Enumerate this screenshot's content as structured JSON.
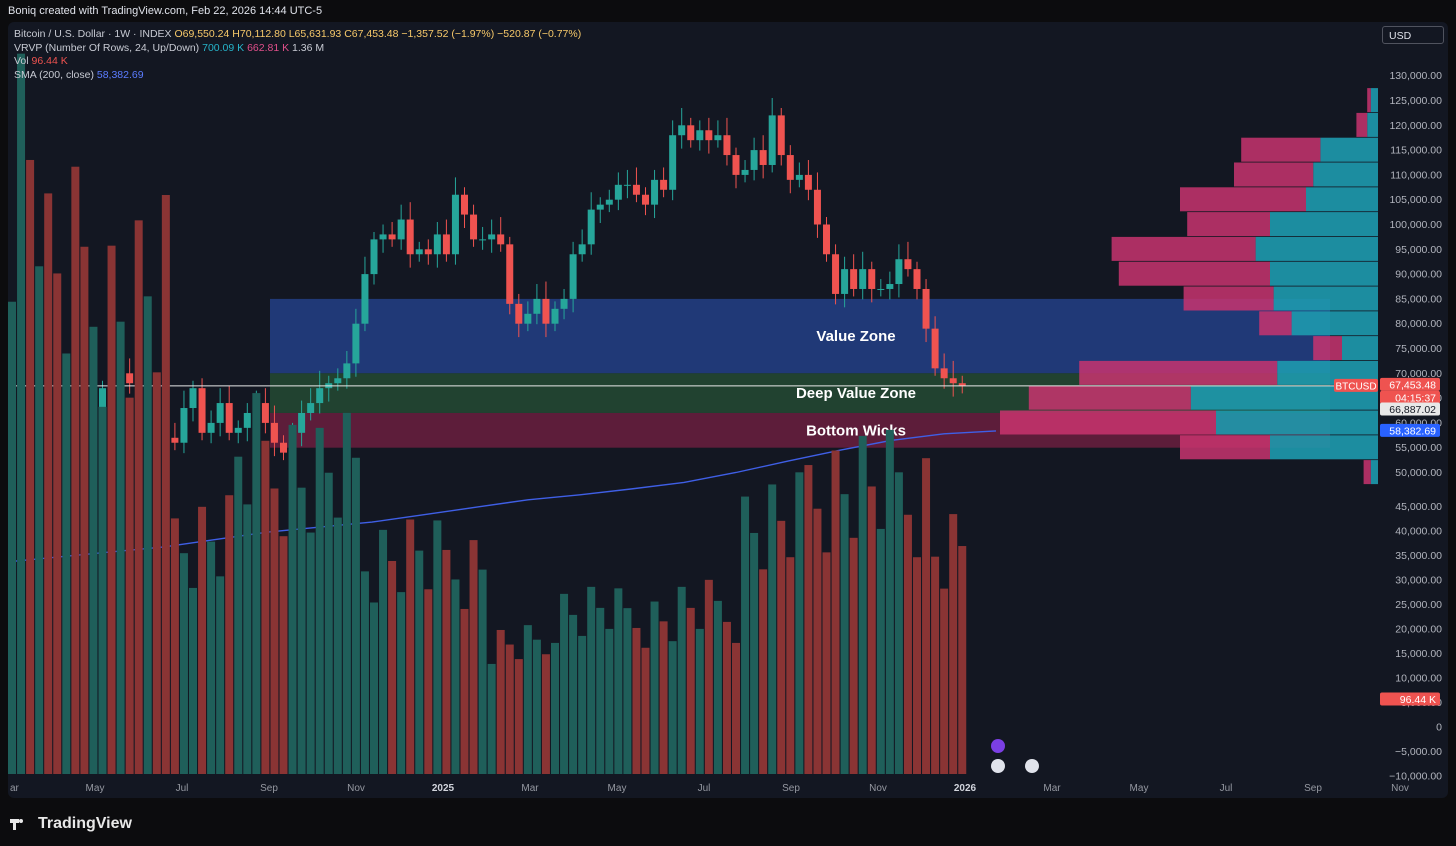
{
  "header": {
    "credit": "Boniq created with TradingView.com, Feb 22, 2026 14:44 UTC-5"
  },
  "legend": {
    "symbol": "Bitcoin / U.S. Dollar · 1W · INDEX",
    "open": "O69,550.24",
    "high": "H70,112.80",
    "low": "L65,631.93",
    "close": "C67,453.48",
    "change": "−1,357.52 (−1.97%)",
    "change2": "−520.87 (−0.77%)",
    "vrvp_label": "VRVP (Number Of Rows, 24, Up/Down)",
    "vrvp_up": "700.09 K",
    "vrvp_down": "662.81 K",
    "vrvp_total": "1.36 M",
    "vol_label": "Vol",
    "vol_value": "96.44 K",
    "sma_label": "SMA (200, close)",
    "sma_value": "58,382.69"
  },
  "currency_button": "USD",
  "colors": {
    "up": "#26a69a",
    "down": "#ef5350",
    "sma": "#3f5fe6",
    "value_zone": "#233f86",
    "deep_value_zone": "#254a33",
    "bottom_wicks": "#6b1f3e",
    "vp_up": "#1e9aae",
    "vp_down": "#c8346f"
  },
  "zones": [
    {
      "label": "Value Zone",
      "low": 70000,
      "high": 85000
    },
    {
      "label": "Deep Value Zone",
      "low": 62000,
      "high": 70000
    },
    {
      "label": "Bottom Wicks",
      "low": 55000,
      "high": 62000
    }
  ],
  "price_tags": {
    "symbol_tag": "BTCUSD",
    "last": "67,453.48",
    "countdown": "04:15:37",
    "level": "66,887.02",
    "sma": "58,382.69",
    "vol": "96.44 K"
  },
  "brand": "TradingView",
  "chart_data": {
    "type": "candlestick",
    "x_tick_labels": [
      "ar",
      "May",
      "Jul",
      "Sep",
      "Nov",
      "2025",
      "Mar",
      "May",
      "Jul",
      "Sep",
      "Nov",
      "2026",
      "Mar",
      "May",
      "Jul",
      "Sep",
      "Nov"
    ],
    "y_tick_labels": [
      "130,000.00",
      "125,000.00",
      "120,000.00",
      "115,000.00",
      "110,000.00",
      "105,000.00",
      "100,000.00",
      "95,000.00",
      "90,000.00",
      "85,000.00",
      "80,000.00",
      "75,000.00",
      "70,000.00",
      "65,000.00",
      "60,000.00",
      "55,000.00",
      "50,000.00",
      "45,000.00",
      "40,000.00",
      "35,000.00",
      "30,000.00",
      "25,000.00",
      "20,000.00",
      "15,000.00",
      "10,000.00",
      "5,000.00",
      "0",
      "−5,000.00",
      "−10,000.00"
    ],
    "closes": [
      66000,
      69000,
      63000,
      71000,
      68000,
      62000,
      66000,
      64000,
      61000,
      63000,
      67000,
      66000,
      70000,
      68000,
      64000,
      66000,
      60000,
      57000,
      56000,
      63000,
      67000,
      58000,
      60000,
      64000,
      58000,
      59000,
      62000,
      64000,
      60000,
      56000,
      54000,
      58000,
      62000,
      64000,
      67000,
      68000,
      69000,
      72000,
      80000,
      90000,
      97000,
      98000,
      97000,
      101000,
      94000,
      95000,
      94000,
      98000,
      94000,
      106000,
      102000,
      97000,
      97000,
      98000,
      96000,
      84000,
      80000,
      82000,
      85000,
      80000,
      83000,
      85000,
      94000,
      96000,
      103000,
      104000,
      105000,
      108000,
      108000,
      106000,
      104000,
      109000,
      107000,
      118000,
      120000,
      117000,
      119000,
      117000,
      118000,
      114000,
      110000,
      111000,
      115000,
      112000,
      122000,
      114000,
      109000,
      110000,
      107000,
      100000,
      94000,
      86000,
      91000,
      87000,
      91000,
      87000,
      87000,
      88000,
      93000,
      91000,
      87000,
      79000,
      71000,
      69000,
      68000,
      67453
    ],
    "sma": [
      32000,
      33000,
      34000,
      35000,
      36500,
      38000,
      39000,
      40000,
      41500,
      43000,
      44500,
      45500,
      46700,
      48000,
      50000,
      52300,
      54500,
      56500,
      57800,
      58383
    ],
    "volume_k": [
      263,
      198,
      188,
      86,
      118,
      111,
      77,
      73,
      36,
      52,
      49,
      52,
      90,
      108,
      105,
      79
    ],
    "volume_profile": [
      {
        "price": 125000,
        "up": 0.02,
        "down": 0.01
      },
      {
        "price": 120000,
        "up": 0.03,
        "down": 0.03
      },
      {
        "price": 115000,
        "up": 0.16,
        "down": 0.22
      },
      {
        "price": 110000,
        "up": 0.18,
        "down": 0.22
      },
      {
        "price": 105000,
        "up": 0.2,
        "down": 0.35
      },
      {
        "price": 100000,
        "up": 0.3,
        "down": 0.23
      },
      {
        "price": 95000,
        "up": 0.34,
        "down": 0.4
      },
      {
        "price": 90000,
        "up": 0.3,
        "down": 0.42
      },
      {
        "price": 85000,
        "up": 0.29,
        "down": 0.25
      },
      {
        "price": 80000,
        "up": 0.24,
        "down": 0.09
      },
      {
        "price": 75000,
        "up": 0.1,
        "down": 0.08
      },
      {
        "price": 70000,
        "up": 0.28,
        "down": 0.55
      },
      {
        "price": 65000,
        "up": 0.52,
        "down": 0.45
      },
      {
        "price": 60000,
        "up": 0.45,
        "down": 0.6
      },
      {
        "price": 55000,
        "up": 0.3,
        "down": 0.25
      },
      {
        "price": 50000,
        "up": 0.02,
        "down": 0.02
      }
    ]
  }
}
